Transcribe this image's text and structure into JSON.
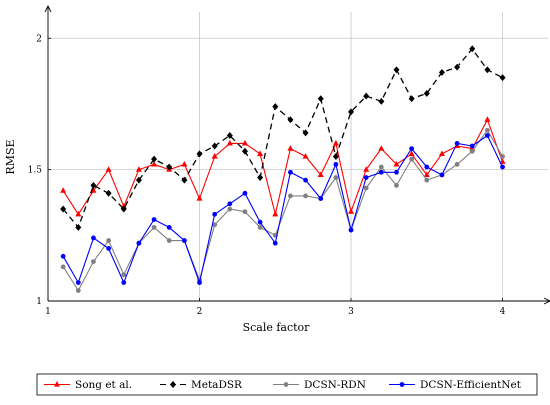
{
  "chart_data": {
    "type": "line",
    "title": "",
    "xlabel": "Scale factor",
    "ylabel": "RMSE",
    "xlim": [
      1,
      4.3
    ],
    "ylim": [
      1,
      2.1
    ],
    "xticks": [
      1,
      2,
      3,
      4
    ],
    "yticks": [
      1,
      1.5,
      2
    ],
    "grid": true,
    "legend_position": "bottom",
    "x": [
      1.1,
      1.2,
      1.3,
      1.4,
      1.5,
      1.6,
      1.7,
      1.8,
      1.9,
      2.0,
      2.1,
      2.2,
      2.3,
      2.4,
      2.5,
      2.6,
      2.7,
      2.8,
      2.9,
      3.0,
      3.1,
      3.2,
      3.3,
      3.4,
      3.5,
      3.6,
      3.7,
      3.8,
      3.9,
      4.0
    ],
    "series": [
      {
        "name": "Song et al.",
        "color": "#ff0000",
        "dash": "solid",
        "marker": "triangle",
        "values": [
          1.42,
          1.33,
          1.42,
          1.5,
          1.36,
          1.5,
          1.52,
          1.5,
          1.52,
          1.39,
          1.55,
          1.6,
          1.6,
          1.56,
          1.33,
          1.58,
          1.55,
          1.48,
          1.6,
          1.34,
          1.5,
          1.58,
          1.52,
          1.56,
          1.48,
          1.56,
          1.59,
          1.58,
          1.69,
          1.53
        ]
      },
      {
        "name": "MetaDSR",
        "color": "#000000",
        "dash": "dashed",
        "marker": "diamond",
        "values": [
          1.35,
          1.28,
          1.44,
          1.41,
          1.35,
          1.46,
          1.54,
          1.51,
          1.46,
          1.56,
          1.59,
          1.63,
          1.57,
          1.47,
          1.74,
          1.69,
          1.64,
          1.77,
          1.55,
          1.72,
          1.78,
          1.76,
          1.88,
          1.77,
          1.79,
          1.87,
          1.89,
          1.96,
          1.88,
          1.85
        ]
      },
      {
        "name": "DCSN-RDN",
        "color": "#808080",
        "dash": "solid",
        "marker": "circle",
        "values": [
          1.13,
          1.04,
          1.15,
          1.23,
          1.1,
          1.22,
          1.28,
          1.23,
          1.23,
          1.08,
          1.29,
          1.35,
          1.34,
          1.28,
          1.25,
          1.4,
          1.4,
          1.39,
          1.47,
          1.27,
          1.43,
          1.51,
          1.44,
          1.54,
          1.46,
          1.48,
          1.52,
          1.57,
          1.65,
          1.55
        ]
      },
      {
        "name": "DCSN-EfficientNet",
        "color": "#0000ff",
        "dash": "solid",
        "marker": "circle",
        "values": [
          1.17,
          1.07,
          1.24,
          1.2,
          1.07,
          1.22,
          1.31,
          1.28,
          1.23,
          1.07,
          1.33,
          1.37,
          1.41,
          1.3,
          1.22,
          1.49,
          1.46,
          1.39,
          1.52,
          1.27,
          1.47,
          1.49,
          1.49,
          1.58,
          1.51,
          1.48,
          1.6,
          1.59,
          1.63,
          1.51
        ]
      }
    ]
  }
}
